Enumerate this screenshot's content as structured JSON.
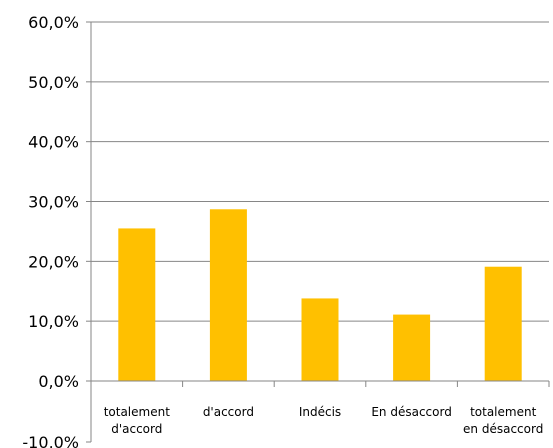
{
  "chart_data": {
    "type": "bar",
    "categories": [
      [
        "totalement",
        "d'accord"
      ],
      [
        "d'accord"
      ],
      [
        "Indécis"
      ],
      [
        "En désaccord"
      ],
      [
        "totalement",
        "en désaccord"
      ]
    ],
    "values": [
      25.5,
      28.7,
      13.8,
      11.1,
      19.1
    ],
    "ylim": [
      -10,
      60
    ],
    "yticks": [
      -10,
      0,
      10,
      20,
      30,
      40,
      50,
      60
    ],
    "ytick_labels": [
      "-10,0%",
      "0,0%",
      "10,0%",
      "20,0%",
      "30,0%",
      "40,0%",
      "50,0%",
      "60,0%"
    ],
    "grid": true,
    "colors": {
      "bar": "#FFC000",
      "grid": "#868686",
      "axis": "#868686"
    }
  }
}
